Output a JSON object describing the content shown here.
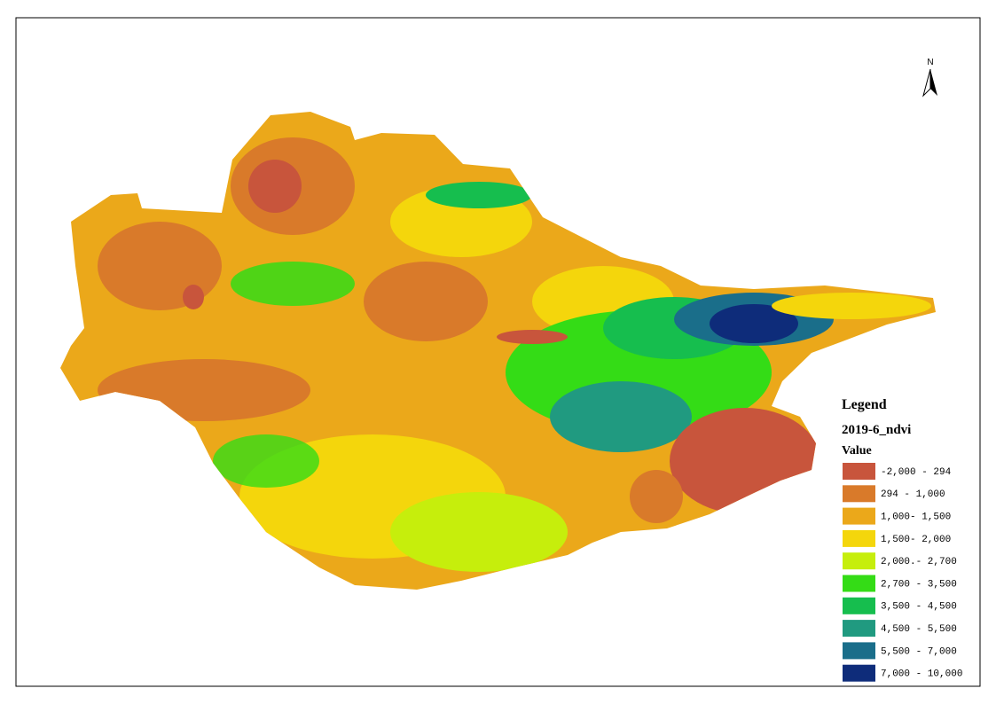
{
  "north_arrow": {
    "label": "N"
  },
  "legend": {
    "title": "Legend",
    "layer": "2019-6_ndvi",
    "field": "Value",
    "classes": [
      {
        "label": "-2,000 - 294",
        "color": "#c8553c"
      },
      {
        "label": "294 - 1,000",
        "color": "#d97a2a"
      },
      {
        "label": "1,000- 1,500",
        "color": "#eba81a"
      },
      {
        "label": "1,500- 2,000",
        "color": "#f4d60c"
      },
      {
        "label": "2,000.- 2,700",
        "color": "#c6ee0c"
      },
      {
        "label": "2,700 - 3,500",
        "color": "#34dc16"
      },
      {
        "label": "3,500 - 4,500",
        "color": "#16be4e"
      },
      {
        "label": "4,500 - 5,500",
        "color": "#209a80"
      },
      {
        "label": "5,500 - 7,000",
        "color": "#1a6e8a"
      },
      {
        "label": "7,000 - 10,000",
        "color": "#0e2c7a"
      }
    ]
  }
}
